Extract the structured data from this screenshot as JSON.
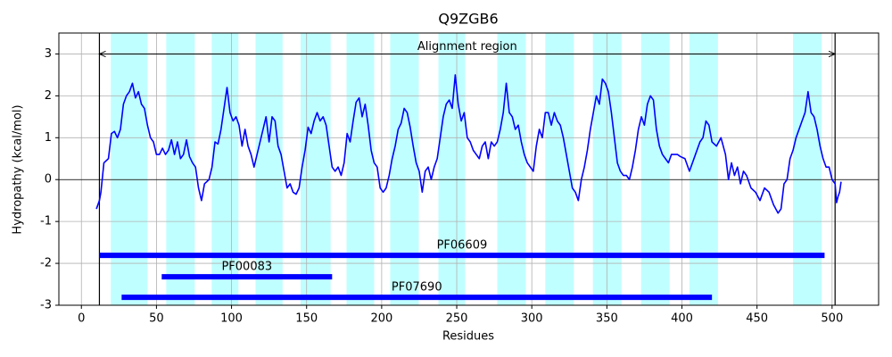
{
  "chart_data": {
    "type": "line",
    "title": "Q9ZGB6",
    "x_label": "Residues",
    "y_label": "Hydropathy (kcal/mol)",
    "color": "#0000ff",
    "grid": true,
    "xlim": [
      -15,
      531
    ],
    "ylim": [
      -3,
      3.5
    ],
    "xticks": [
      0,
      50,
      100,
      150,
      200,
      250,
      300,
      350,
      400,
      450,
      500
    ],
    "yticks": [
      -3,
      -2,
      -1,
      0,
      1,
      2,
      3
    ],
    "x": [
      10,
      12,
      13,
      15,
      18,
      20,
      22,
      24,
      26,
      28,
      30,
      32,
      34,
      36,
      38,
      40,
      42,
      44,
      46,
      48,
      50,
      52,
      54,
      56,
      58,
      60,
      62,
      64,
      66,
      68,
      70,
      72,
      74,
      76,
      78,
      80,
      82,
      85,
      87,
      89,
      91,
      93,
      95,
      97,
      99,
      101,
      103,
      105,
      107,
      109,
      111,
      113,
      115,
      117,
      119,
      121,
      123,
      125,
      127,
      129,
      131,
      133,
      135,
      137,
      139,
      141,
      143,
      145,
      147,
      149,
      151,
      153,
      155,
      157,
      159,
      161,
      163,
      165,
      167,
      169,
      171,
      173,
      175,
      177,
      179,
      181,
      183,
      185,
      187,
      189,
      191,
      193,
      195,
      197,
      199,
      201,
      203,
      205,
      207,
      209,
      211,
      213,
      215,
      217,
      219,
      221,
      223,
      225,
      227,
      229,
      231,
      233,
      235,
      237,
      239,
      241,
      243,
      245,
      247,
      249,
      251,
      253,
      255,
      257,
      259,
      261,
      263,
      265,
      267,
      269,
      271,
      273,
      275,
      277,
      279,
      281,
      283,
      285,
      287,
      289,
      291,
      293,
      295,
      297,
      299,
      301,
      303,
      305,
      307,
      309,
      311,
      313,
      315,
      317,
      319,
      321,
      323,
      325,
      327,
      329,
      331,
      333,
      335,
      337,
      339,
      341,
      343,
      345,
      347,
      349,
      351,
      353,
      355,
      357,
      359,
      361,
      363,
      365,
      367,
      369,
      371,
      373,
      375,
      377,
      379,
      381,
      383,
      385,
      387,
      389,
      391,
      393,
      395,
      397,
      399,
      402,
      405,
      409,
      412,
      414,
      416,
      418,
      420,
      423,
      426,
      429,
      431,
      433,
      435,
      437,
      439,
      441,
      443,
      446,
      449,
      452,
      455,
      458,
      461,
      464,
      466,
      468,
      470,
      472,
      474,
      476,
      478,
      480,
      482,
      484,
      486,
      488,
      490,
      492,
      494,
      496,
      498,
      500,
      502,
      503,
      504,
      505,
      506
    ],
    "values": [
      -0.7,
      -0.5,
      -0.3,
      0.4,
      0.5,
      1.1,
      1.15,
      1.0,
      1.2,
      1.8,
      2.0,
      2.1,
      2.3,
      1.95,
      2.1,
      1.8,
      1.7,
      1.3,
      1.0,
      0.9,
      0.6,
      0.6,
      0.75,
      0.6,
      0.7,
      0.95,
      0.6,
      0.9,
      0.5,
      0.6,
      0.95,
      0.55,
      0.4,
      0.3,
      -0.2,
      -0.5,
      -0.1,
      0.0,
      0.3,
      0.9,
      0.85,
      1.2,
      1.7,
      2.2,
      1.6,
      1.4,
      1.5,
      1.3,
      0.8,
      1.2,
      0.8,
      0.6,
      0.3,
      0.6,
      0.9,
      1.2,
      1.5,
      0.9,
      1.5,
      1.4,
      0.8,
      0.6,
      0.2,
      -0.2,
      -0.1,
      -0.3,
      -0.35,
      -0.2,
      0.3,
      0.7,
      1.25,
      1.1,
      1.4,
      1.6,
      1.4,
      1.5,
      1.3,
      0.8,
      0.3,
      0.2,
      0.3,
      0.1,
      0.4,
      1.1,
      0.9,
      1.4,
      1.85,
      1.95,
      1.5,
      1.8,
      1.3,
      0.7,
      0.4,
      0.3,
      -0.2,
      -0.3,
      -0.2,
      0.1,
      0.5,
      0.8,
      1.2,
      1.35,
      1.7,
      1.6,
      1.25,
      0.8,
      0.4,
      0.2,
      -0.3,
      0.2,
      0.3,
      0.0,
      0.3,
      0.5,
      1.0,
      1.5,
      1.8,
      1.9,
      1.7,
      2.5,
      1.8,
      1.4,
      1.6,
      1.0,
      0.9,
      0.7,
      0.6,
      0.5,
      0.8,
      0.9,
      0.5,
      0.9,
      0.8,
      0.9,
      1.2,
      1.6,
      2.3,
      1.6,
      1.5,
      1.2,
      1.3,
      0.9,
      0.6,
      0.4,
      0.3,
      0.2,
      0.8,
      1.2,
      1.0,
      1.6,
      1.6,
      1.3,
      1.6,
      1.4,
      1.3,
      1.0,
      0.6,
      0.2,
      -0.2,
      -0.3,
      -0.5,
      0.0,
      0.3,
      0.7,
      1.2,
      1.6,
      2.0,
      1.8,
      2.4,
      2.3,
      2.1,
      1.6,
      1.0,
      0.4,
      0.2,
      0.1,
      0.1,
      0.0,
      0.3,
      0.7,
      1.2,
      1.5,
      1.3,
      1.8,
      2.0,
      1.9,
      1.2,
      0.8,
      0.6,
      0.5,
      0.4,
      0.6,
      0.6,
      0.6,
      0.55,
      0.5,
      0.2,
      0.6,
      0.9,
      1.0,
      1.4,
      1.3,
      0.9,
      0.8,
      1.0,
      0.6,
      0.0,
      0.4,
      0.1,
      0.3,
      -0.1,
      0.2,
      0.1,
      -0.2,
      -0.3,
      -0.5,
      -0.2,
      -0.3,
      -0.6,
      -0.8,
      -0.7,
      -0.1,
      0.0,
      0.5,
      0.7,
      1.0,
      1.2,
      1.4,
      1.6,
      2.1,
      1.6,
      1.5,
      1.2,
      0.8,
      0.5,
      0.3,
      0.3,
      0.0,
      -0.1,
      -0.55,
      -0.4,
      -0.3,
      -0.05
    ],
    "highlight_color": "#c0ffff",
    "highlight_regions": [
      [
        19.6,
        44
      ],
      [
        56.5,
        75.5
      ],
      [
        86.8,
        104.6
      ],
      [
        116,
        134
      ],
      [
        146,
        166
      ],
      [
        176.6,
        195
      ],
      [
        205.7,
        224.7
      ],
      [
        237.8,
        255.6
      ],
      [
        277,
        296
      ],
      [
        309,
        328
      ],
      [
        340.7,
        359.7
      ],
      [
        372.8,
        391.8
      ],
      [
        405,
        424
      ],
      [
        474,
        493
      ]
    ],
    "alignment_region": {
      "label": "Alignment region",
      "start": 12,
      "end": 502,
      "y": 3
    },
    "domains": [
      {
        "name": "PF06609",
        "start": 12,
        "end": 495,
        "y": -1.81
      },
      {
        "name": "PF00083",
        "start": 53.5,
        "end": 167,
        "y": -2.32
      },
      {
        "name": "PF07690",
        "start": 26.8,
        "end": 420,
        "y": -2.81
      }
    ]
  }
}
